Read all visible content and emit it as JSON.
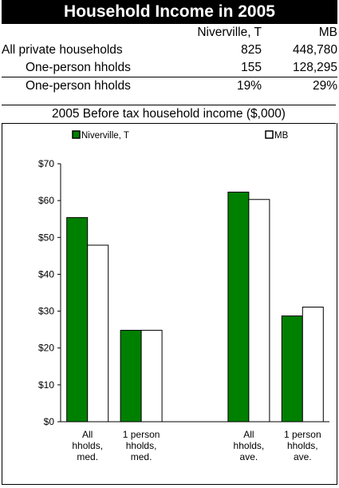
{
  "title": "Household Income in 2005",
  "table": {
    "columns": [
      "Niverville, T",
      "MB"
    ],
    "rows": [
      {
        "label": "All private households",
        "values": [
          "825",
          "448,780"
        ]
      },
      {
        "label": "One-person hholds",
        "values": [
          "155",
          "128,295"
        ]
      },
      {
        "label": "One-person hholds",
        "values": [
          "19%",
          "29%"
        ]
      }
    ]
  },
  "chart_caption": "2005 Before tax household income ($,000)",
  "chart_data": {
    "type": "bar",
    "categories": [
      [
        "All",
        "hholds,",
        "med."
      ],
      [
        "1 person",
        "hholds,",
        "med."
      ],
      [
        "",
        "",
        ""
      ],
      [
        "All",
        "hholds,",
        "ave."
      ],
      [
        "1 person",
        "hholds,",
        "ave."
      ]
    ],
    "series": [
      {
        "name": "Niverville, T",
        "color": "#008000",
        "values": [
          55.4,
          24.8,
          null,
          62.3,
          28.7
        ]
      },
      {
        "name": "MB",
        "color": "#ffffff",
        "values": [
          47.9,
          24.8,
          null,
          60.3,
          31.1
        ]
      }
    ],
    "y_ticks": [
      "$0",
      "$10",
      "$20",
      "$30",
      "$40",
      "$50",
      "$60",
      "$70"
    ],
    "ylim": [
      0,
      70
    ],
    "legend_position": "top"
  }
}
